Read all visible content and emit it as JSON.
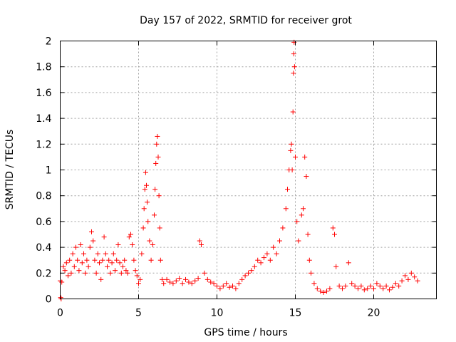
{
  "chart_data": {
    "type": "scatter",
    "title": "Day 157 of 2022, SRMTID for receiver grot",
    "xlabel": "GPS time / hours",
    "ylabel": "SRMTID / TECUs",
    "xlim": [
      0,
      24
    ],
    "ylim": [
      0,
      2
    ],
    "xticks": [
      0,
      5,
      10,
      15,
      20
    ],
    "xtick_labels": [
      "0",
      "5",
      "10",
      "15",
      "20"
    ],
    "yticks": [
      0,
      0.2,
      0.4,
      0.6,
      0.8,
      1,
      1.2,
      1.4,
      1.6,
      1.8,
      2
    ],
    "ytick_labels": [
      "0",
      "0.2",
      "0.4",
      "0.6",
      "0.8",
      "1",
      "1.2",
      "1.4",
      "1.6",
      "1.8",
      "2"
    ],
    "grid": true,
    "marker": "+",
    "marker_color": "#ff0000",
    "series": [
      {
        "name": "SRMTID",
        "points": [
          [
            0.0,
            0.14
          ],
          [
            0.03,
            0.01
          ],
          [
            0.06,
            0.0
          ],
          [
            0.1,
            0.13
          ],
          [
            0.2,
            0.25
          ],
          [
            0.3,
            0.22
          ],
          [
            0.4,
            0.28
          ],
          [
            0.5,
            0.18
          ],
          [
            0.6,
            0.3
          ],
          [
            0.7,
            0.2
          ],
          [
            0.8,
            0.35
          ],
          [
            0.9,
            0.25
          ],
          [
            1.0,
            0.4
          ],
          [
            1.1,
            0.3
          ],
          [
            1.2,
            0.22
          ],
          [
            1.3,
            0.42
          ],
          [
            1.4,
            0.28
          ],
          [
            1.5,
            0.35
          ],
          [
            1.6,
            0.2
          ],
          [
            1.7,
            0.3
          ],
          [
            1.8,
            0.25
          ],
          [
            1.9,
            0.4
          ],
          [
            2.0,
            0.52
          ],
          [
            2.1,
            0.45
          ],
          [
            2.2,
            0.3
          ],
          [
            2.3,
            0.2
          ],
          [
            2.4,
            0.35
          ],
          [
            2.5,
            0.28
          ],
          [
            2.6,
            0.15
          ],
          [
            2.7,
            0.3
          ],
          [
            2.8,
            0.48
          ],
          [
            2.9,
            0.35
          ],
          [
            3.0,
            0.25
          ],
          [
            3.1,
            0.3
          ],
          [
            3.2,
            0.2
          ],
          [
            3.3,
            0.28
          ],
          [
            3.4,
            0.35
          ],
          [
            3.5,
            0.22
          ],
          [
            3.6,
            0.3
          ],
          [
            3.7,
            0.42
          ],
          [
            3.8,
            0.28
          ],
          [
            3.9,
            0.2
          ],
          [
            4.0,
            0.25
          ],
          [
            4.1,
            0.3
          ],
          [
            4.2,
            0.22
          ],
          [
            4.3,
            0.2
          ],
          [
            4.4,
            0.48
          ],
          [
            4.5,
            0.5
          ],
          [
            4.6,
            0.42
          ],
          [
            4.7,
            0.3
          ],
          [
            4.8,
            0.22
          ],
          [
            4.9,
            0.18
          ],
          [
            5.0,
            0.12
          ],
          [
            5.1,
            0.15
          ],
          [
            5.2,
            0.35
          ],
          [
            5.3,
            0.55
          ],
          [
            5.35,
            0.7
          ],
          [
            5.4,
            0.85
          ],
          [
            5.45,
            0.98
          ],
          [
            5.5,
            0.88
          ],
          [
            5.55,
            0.75
          ],
          [
            5.6,
            0.6
          ],
          [
            5.7,
            0.45
          ],
          [
            5.8,
            0.3
          ],
          [
            5.9,
            0.42
          ],
          [
            6.0,
            0.65
          ],
          [
            6.05,
            0.85
          ],
          [
            6.1,
            1.05
          ],
          [
            6.15,
            1.2
          ],
          [
            6.2,
            1.26
          ],
          [
            6.25,
            1.1
          ],
          [
            6.3,
            0.8
          ],
          [
            6.35,
            0.55
          ],
          [
            6.4,
            0.3
          ],
          [
            6.5,
            0.15
          ],
          [
            6.6,
            0.12
          ],
          [
            6.8,
            0.15
          ],
          [
            7.0,
            0.13
          ],
          [
            7.2,
            0.12
          ],
          [
            7.4,
            0.14
          ],
          [
            7.6,
            0.16
          ],
          [
            7.8,
            0.12
          ],
          [
            8.0,
            0.15
          ],
          [
            8.2,
            0.13
          ],
          [
            8.4,
            0.12
          ],
          [
            8.6,
            0.14
          ],
          [
            8.8,
            0.16
          ],
          [
            8.9,
            0.45
          ],
          [
            9.0,
            0.42
          ],
          [
            9.2,
            0.2
          ],
          [
            9.4,
            0.15
          ],
          [
            9.6,
            0.13
          ],
          [
            9.8,
            0.12
          ],
          [
            10.0,
            0.1
          ],
          [
            10.2,
            0.08
          ],
          [
            10.4,
            0.1
          ],
          [
            10.6,
            0.12
          ],
          [
            10.8,
            0.09
          ],
          [
            11.0,
            0.1
          ],
          [
            11.2,
            0.08
          ],
          [
            11.4,
            0.12
          ],
          [
            11.6,
            0.15
          ],
          [
            11.8,
            0.18
          ],
          [
            12.0,
            0.2
          ],
          [
            12.2,
            0.22
          ],
          [
            12.4,
            0.25
          ],
          [
            12.6,
            0.3
          ],
          [
            12.8,
            0.28
          ],
          [
            13.0,
            0.32
          ],
          [
            13.2,
            0.35
          ],
          [
            13.4,
            0.3
          ],
          [
            13.6,
            0.4
          ],
          [
            13.8,
            0.35
          ],
          [
            14.0,
            0.45
          ],
          [
            14.2,
            0.55
          ],
          [
            14.4,
            0.7
          ],
          [
            14.5,
            0.85
          ],
          [
            14.6,
            1.0
          ],
          [
            14.7,
            1.15
          ],
          [
            14.75,
            1.2
          ],
          [
            14.8,
            1.0
          ],
          [
            14.85,
            1.45
          ],
          [
            14.88,
            1.75
          ],
          [
            14.9,
            1.9
          ],
          [
            14.92,
            1.99
          ],
          [
            14.95,
            1.8
          ],
          [
            15.0,
            1.1
          ],
          [
            15.1,
            0.6
          ],
          [
            15.2,
            0.45
          ],
          [
            15.4,
            0.65
          ],
          [
            15.5,
            0.7
          ],
          [
            15.6,
            1.1
          ],
          [
            15.7,
            0.95
          ],
          [
            15.8,
            0.5
          ],
          [
            15.9,
            0.3
          ],
          [
            16.0,
            0.2
          ],
          [
            16.2,
            0.12
          ],
          [
            16.4,
            0.08
          ],
          [
            16.6,
            0.06
          ],
          [
            16.8,
            0.05
          ],
          [
            17.0,
            0.06
          ],
          [
            17.2,
            0.08
          ],
          [
            17.4,
            0.55
          ],
          [
            17.5,
            0.5
          ],
          [
            17.6,
            0.25
          ],
          [
            17.8,
            0.1
          ],
          [
            18.0,
            0.08
          ],
          [
            18.2,
            0.1
          ],
          [
            18.4,
            0.28
          ],
          [
            18.6,
            0.12
          ],
          [
            18.8,
            0.1
          ],
          [
            19.0,
            0.08
          ],
          [
            19.2,
            0.1
          ],
          [
            19.4,
            0.07
          ],
          [
            19.6,
            0.08
          ],
          [
            19.8,
            0.1
          ],
          [
            20.0,
            0.08
          ],
          [
            20.2,
            0.12
          ],
          [
            20.4,
            0.1
          ],
          [
            20.6,
            0.08
          ],
          [
            20.8,
            0.1
          ],
          [
            21.0,
            0.07
          ],
          [
            21.2,
            0.09
          ],
          [
            21.4,
            0.12
          ],
          [
            21.6,
            0.1
          ],
          [
            21.8,
            0.14
          ],
          [
            22.0,
            0.18
          ],
          [
            22.2,
            0.15
          ],
          [
            22.4,
            0.2
          ],
          [
            22.6,
            0.17
          ],
          [
            22.8,
            0.14
          ]
        ]
      }
    ]
  }
}
